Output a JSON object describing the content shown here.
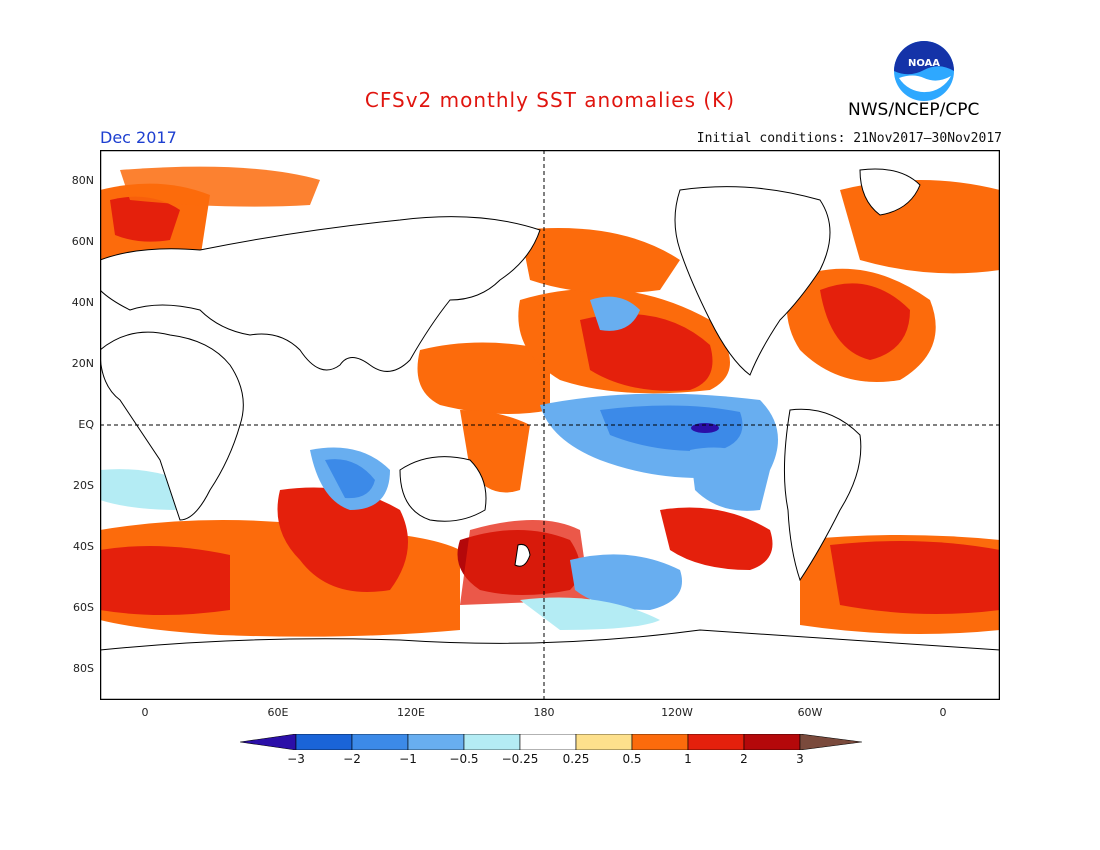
{
  "header": {
    "title": "CFSv2 monthly SST anomalies (K)",
    "agency": "NWS/NCEP/CPC",
    "logo_text": "NOAA",
    "period": "Dec 2017",
    "initial_conditions": "Initial conditions: 21Nov2017–30Nov2017"
  },
  "axes": {
    "lat_labels": [
      "80N",
      "60N",
      "40N",
      "20N",
      "EQ",
      "20S",
      "40S",
      "60S",
      "80S"
    ],
    "lat_values": [
      80,
      60,
      40,
      20,
      0,
      -20,
      -40,
      -60,
      -80
    ],
    "lon_labels": [
      "0",
      "60E",
      "120E",
      "180",
      "120W",
      "60W",
      "0"
    ],
    "lon_values": [
      0,
      60,
      120,
      180,
      240,
      300,
      360
    ],
    "lon_range": [
      -20,
      380
    ],
    "lat_range": [
      -90,
      90
    ]
  },
  "colorbar": {
    "labels": [
      "−3",
      "−2",
      "−1",
      "−0.5",
      "−0.25",
      "0.25",
      "0.5",
      "1",
      "2",
      "3"
    ],
    "colors": [
      "#2b0fa8",
      "#1a64d8",
      "#3c8ae8",
      "#68aef0",
      "#b4ecf4",
      "#ffffff",
      "#fde08c",
      "#fc6b0c",
      "#e4200c",
      "#b4080a",
      "#7a4a3c"
    ]
  },
  "colors": {
    "title": "#e0150f",
    "period": "#1d3fd0",
    "noaa_blue": "#1433a8",
    "noaa_light": "#2ea8ff"
  }
}
